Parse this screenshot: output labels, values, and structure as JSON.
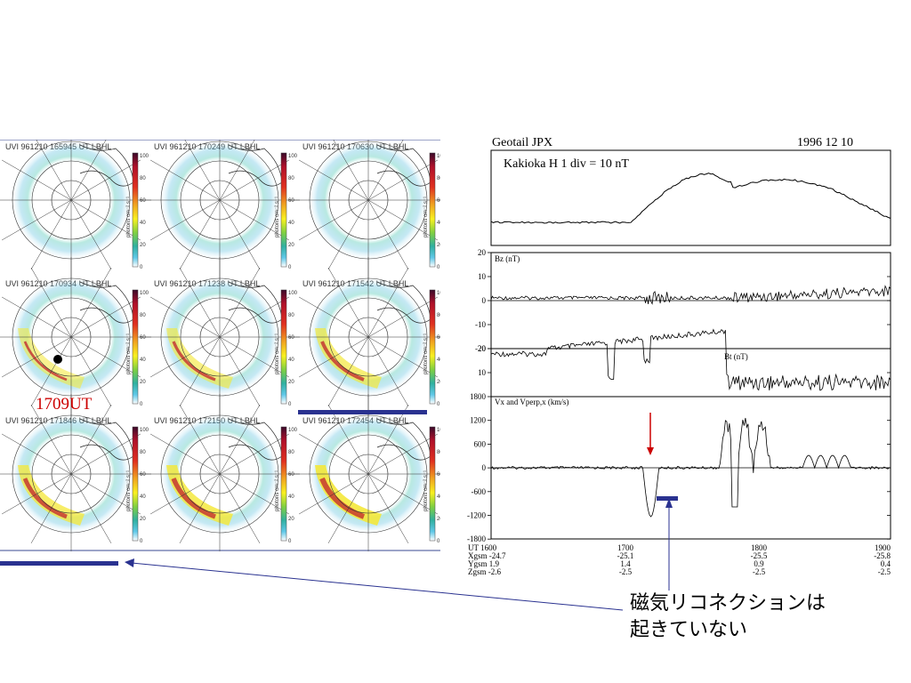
{
  "uvi_panels": [
    {
      "label": "UVI 961210 165945 UT   LBHL"
    },
    {
      "label": "UVI 961210 170249 UT   LBHL"
    },
    {
      "label": "UVI 961210 170630 UT   LBHL"
    },
    {
      "label": "UVI 961210 170934 UT   LBHL"
    },
    {
      "label": "UVI 961210 171238 UT   LBHL"
    },
    {
      "label": "UVI 961210 171542 UT   LBHL"
    },
    {
      "label": "UVI 961210 171846 UT   LBHL"
    },
    {
      "label": "UVI 961210 172150 UT   LBHL"
    },
    {
      "label": "UVI 961210 172454 UT   LBHL"
    }
  ],
  "colorbar": {
    "ticks": [
      "100",
      "80",
      "60",
      "40",
      "20",
      "0"
    ],
    "unit_label": "photons cm⁻² s⁻¹",
    "colors": [
      "#3a0a2a",
      "#b0102a",
      "#e03020",
      "#f0a020",
      "#f8f020",
      "#80d040",
      "#30b0a0",
      "#60c8e8",
      "#ffffff"
    ]
  },
  "onset_label": "1709UT",
  "onset_label_color": "#cc0000",
  "bar_color": "#2a3290",
  "timeseries": {
    "header_left": "Geotail   JPX",
    "header_right": "1996    12    10",
    "panel1_label": "Kakioka   H   1 div = 10 nT",
    "bz_label": "Bz (nT)",
    "bz_ticks": [
      "20",
      "10",
      "0",
      "-10",
      "-20"
    ],
    "bt_label": "Bt (nT)",
    "bt_ticks": [
      "20",
      "10"
    ],
    "v_label": "Vx and Vperp,x (km/s)",
    "v_ticks": [
      "1800",
      "1200",
      "600",
      "0",
      "-600",
      "-1200",
      "-1800"
    ],
    "arrow_color": "#cc0000",
    "footer": {
      "times": [
        "UT   1600",
        "1700",
        "1800",
        "1900"
      ],
      "x_row": [
        "Xgsm -24.7",
        "-25.1",
        "-25.5",
        "-25.8"
      ],
      "y_row": [
        "Ygsm  1.9",
        "1.4",
        "0.9",
        "0.4"
      ],
      "z_row": [
        "Zgsm  -2.6",
        "-2.5",
        "-2.5",
        "-2.5"
      ]
    }
  },
  "caption": {
    "line1": "磁気リコネクションは",
    "line2": "起きていない"
  }
}
